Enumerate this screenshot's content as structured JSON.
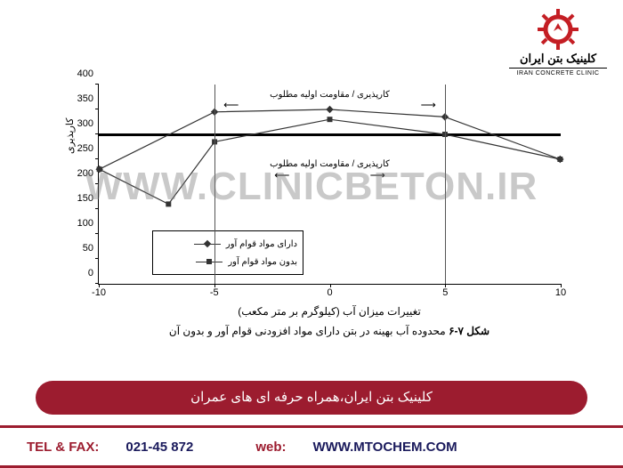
{
  "logo": {
    "text_fa": "کلینیک بتن ایران",
    "text_en": "IRAN CONCRETE CLINIC",
    "gear_color": "#c41e24"
  },
  "watermark": "WWW.CLINICBETON.IR",
  "chart": {
    "type": "line",
    "xlim": [
      -10,
      10
    ],
    "ylim": [
      0,
      400
    ],
    "xtick_step": 5,
    "ytick_step": 50,
    "xticks": [
      -10,
      -5,
      0,
      5,
      10
    ],
    "yticks": [
      0,
      50,
      100,
      150,
      200,
      250,
      300,
      350,
      400
    ],
    "ylabel": "کارپذیری",
    "xlabel": "تغییرات میزان آب (کیلوگرم بر متر مکعب)",
    "caption_prefix": "شکل ۷-۶",
    "caption_text": "محدوده آب بهینه در بتن دارای مواد افزودنی قوام آور و بدون آن",
    "bold_ref_y": 300,
    "vlines_x": [
      -5,
      5
    ],
    "annot_top": "کارپذیری / مقاومت اولیه مطلوب",
    "annot_mid": "کارپذیری / مقاومت اولیه مطلوب",
    "line_color": "#333333",
    "grid_color": "#999999",
    "background_color": "#ffffff",
    "series": [
      {
        "name": "with_admix",
        "label": "دارای مواد قوام آور",
        "marker": "diamond",
        "points": [
          [
            -10,
            230
          ],
          [
            -5,
            345
          ],
          [
            0,
            350
          ],
          [
            5,
            335
          ],
          [
            10,
            250
          ]
        ]
      },
      {
        "name": "without_admix",
        "label": "بدون مواد قوام آور",
        "marker": "square",
        "points": [
          [
            -10,
            230
          ],
          [
            -7,
            160
          ],
          [
            -5,
            285
          ],
          [
            0,
            330
          ],
          [
            5,
            300
          ],
          [
            10,
            250
          ]
        ]
      }
    ]
  },
  "red_bar": "کلینیک بتن ایران،همراه حرفه ای های عمران",
  "footer": {
    "tel_label": "TEL & FAX:",
    "tel_value": "021-45 872",
    "web_label": "web:",
    "web_value": "WWW.MTOCHEM.COM"
  }
}
